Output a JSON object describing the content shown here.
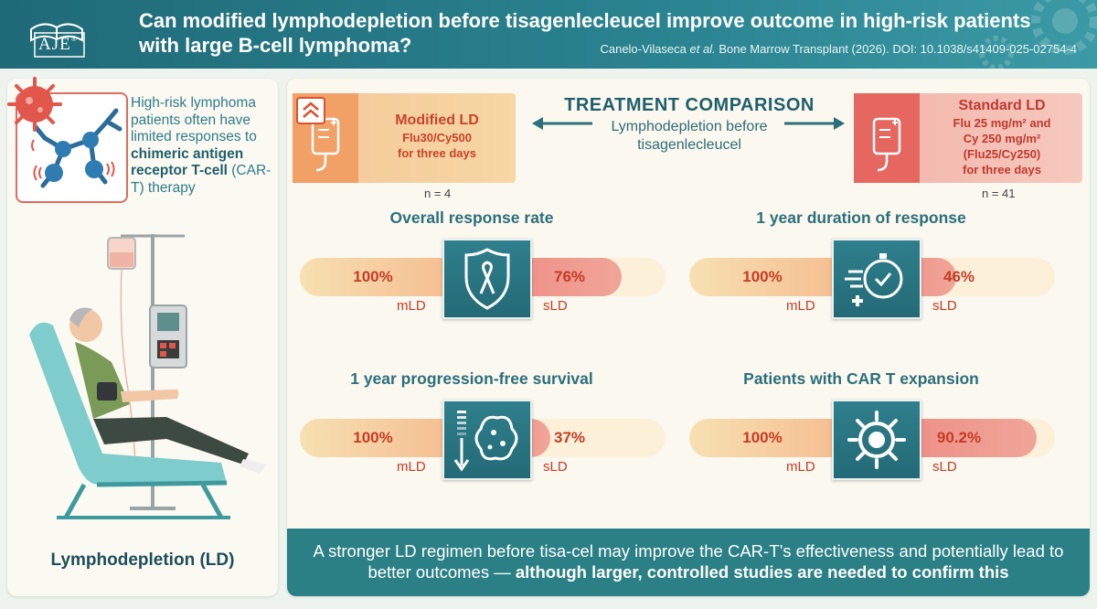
{
  "header": {
    "logo_text": "AJE",
    "logo_mark": "®",
    "title_line1": "Can modified lymphodepletion before tisagenlecleucel improve outcome in high-risk patients",
    "title_line2": "with large B-cell lymphoma?",
    "citation_authors": "Canelo-Vilaseca ",
    "citation_etal": "et al.",
    "citation_rest": " Bone Marrow Transplant (2026). DOI: 10.1038/s41409-025-02754-4"
  },
  "left": {
    "intro_plain": "High-risk lymphoma patients often have limited responses to ",
    "intro_bold": "chimeric antigen receptor T-cell",
    "intro_end": " (CAR-T) therapy",
    "caption": "Lymphodepletion (LD)"
  },
  "comparison": {
    "heading": "TREATMENT COMPARISON",
    "subheading_line1": "Lymphodepletion before",
    "subheading_line2": "tisagenlecleucel",
    "modified": {
      "title": "Modified LD",
      "line1": "Flu30/Cy500",
      "line2": "for three days",
      "n": "n = 4"
    },
    "standard": {
      "title": "Standard LD",
      "line1": "Flu 25 mg/m² and",
      "line2": "Cy 250 mg/m²",
      "line3": "(Flu25/Cy250)",
      "line4": "for three days",
      "n": "n = 41"
    }
  },
  "metrics": [
    {
      "title": "Overall response rate",
      "mld_value": "100%",
      "sld_value": "76%",
      "mld_label": "mLD",
      "sld_label": "sLD",
      "icon": "ribbon-shield-icon",
      "mld_fraction": 1.0,
      "sld_fraction": 0.76
    },
    {
      "title": "1 year duration of response",
      "mld_value": "100%",
      "sld_value": "46%",
      "mld_label": "mLD",
      "sld_label": "sLD",
      "icon": "stopwatch-icon",
      "mld_fraction": 1.0,
      "sld_fraction": 0.46
    },
    {
      "title": "1 year progression-free survival",
      "mld_value": "100%",
      "sld_value": "37%",
      "mld_label": "mLD",
      "sld_label": "sLD",
      "icon": "tumor-decline-icon",
      "mld_fraction": 1.0,
      "sld_fraction": 0.37
    },
    {
      "title": "Patients with CAR T expansion",
      "mld_value": "100%",
      "sld_value": "90.2%",
      "mld_label": "mLD",
      "sld_label": "sLD",
      "icon": "t-cell-expansion-icon",
      "mld_fraction": 1.0,
      "sld_fraction": 0.902
    }
  ],
  "conclusion": {
    "plain": "A stronger LD regimen before tisa-cel may improve the CAR-T’s effectiveness and potentially lead to better outcomes — ",
    "bold": "although larger, controlled studies are needed to confirm this"
  },
  "colors": {
    "teal_dark": "#1f6a78",
    "teal": "#2b8086",
    "accent_red": "#c73b24",
    "orange": "#f1a066",
    "coral": "#e5675f"
  }
}
